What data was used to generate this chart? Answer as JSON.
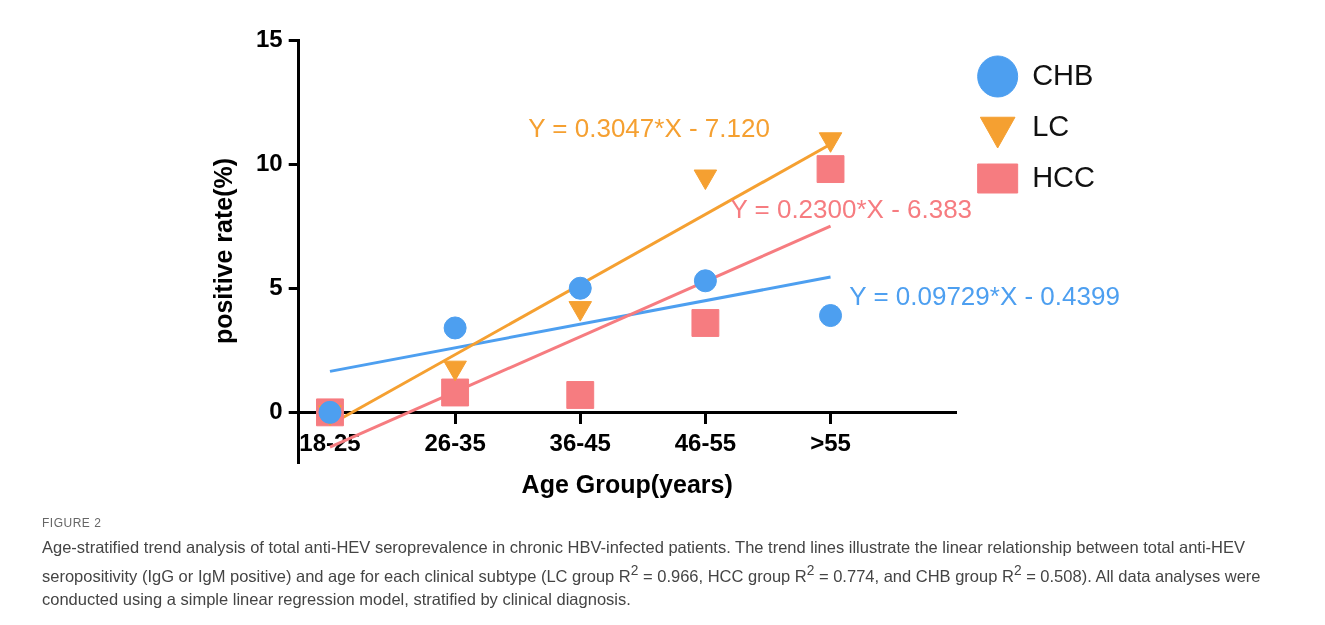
{
  "chart_data": {
    "type": "scatter",
    "xlabel": "Age Group(years)",
    "ylabel": "positive rate(%)",
    "categories": [
      "18-25",
      "26-35",
      "36-45",
      "46-55",
      ">55"
    ],
    "ylim": [
      -2,
      15
    ],
    "yticks": [
      0,
      5,
      10,
      15
    ],
    "grid": false,
    "legend": "right",
    "series": [
      {
        "name": "CHB",
        "color": "#4d9ff0",
        "marker": "circle",
        "values": [
          0,
          3.4,
          5.0,
          5.3,
          3.9
        ]
      },
      {
        "name": "LC",
        "color": "#f5a031",
        "marker": "triangle",
        "values": [
          0,
          1.8,
          4.2,
          9.5,
          11.0
        ]
      },
      {
        "name": "HCC",
        "color": "#f67c80",
        "marker": "square",
        "values": [
          0,
          0.8,
          0.7,
          3.6,
          9.8
        ]
      },
      {
        "type": "line",
        "name": "Y = 0.3047*X - 7.120",
        "color": "#f5a031",
        "x": [
          "18-25",
          ">55"
        ],
        "values": [
          -0.5,
          10.8
        ]
      },
      {
        "type": "line",
        "name": "Y = 0.2300*X - 6.383",
        "color": "#f67c80",
        "x": [
          "18-25",
          ">55"
        ],
        "values": [
          -1.4,
          7.5
        ]
      },
      {
        "type": "line",
        "name": "Y = 0.09729*X - 0.4399",
        "color": "#4d9ff0",
        "x": [
          "18-25",
          ">55"
        ],
        "values": [
          1.65,
          5.45
        ]
      }
    ],
    "annotations": [
      "FIGURE 2",
      "Age-stratified trend analysis of total anti-HEV seroprevalence in chronic HBV-infected patients. The trend lines illustrate the linear relationship between total anti-HEV seropositivity (IgG or IgM positive) and age for each clinical subtype (LC group R$^{2}$ = 0.966, HCC group R$^{2}$ = 0.774, and CHB group R$^{2}$ = 0.508). All data analyses were conducted using a simple linear regression model, stratified by clinical diagnosis."
    ]
  }
}
